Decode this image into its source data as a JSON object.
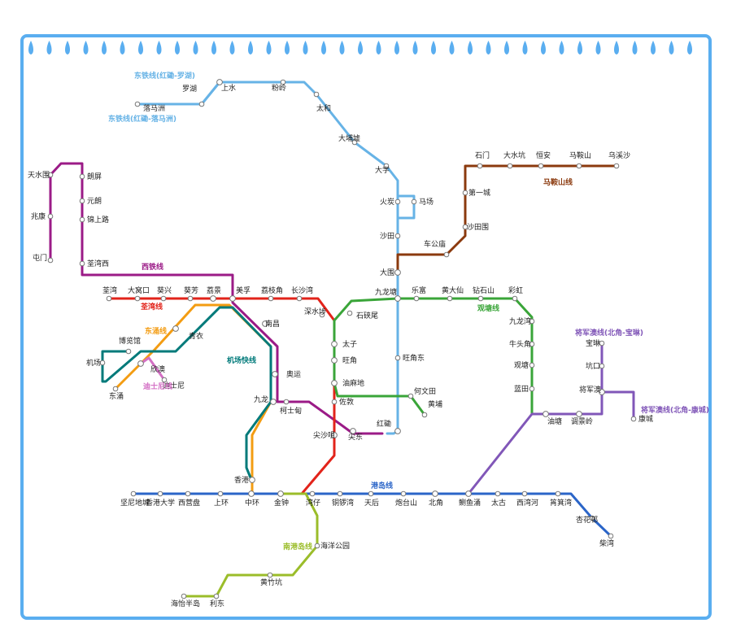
{
  "colors": {
    "frame": "#5aaef0",
    "east_rail": "#67b3e6",
    "west_rail": "#9b1b87",
    "tsuen_wan": "#e2231a",
    "tung_chung": "#f39c12",
    "airport_express": "#007a7a",
    "disneyland": "#d36fc4",
    "kwun_tong": "#3aa539",
    "ma_on_shan": "#8b3a0e",
    "tseung_kwan_o": "#8157b8",
    "island": "#2b65c8",
    "south_island": "#9bbd2a"
  },
  "lines": [
    {
      "id": "east_rail_lowu",
      "name": "东铁线(红磡-罗湖)",
      "color_key": "east_rail",
      "stations": [
        "罗湖",
        "上水",
        "粉岭",
        "太和",
        "大埔墟",
        "大学",
        "火炭",
        "沙田",
        "大围",
        "九龙塘",
        "旺角东",
        "红磡"
      ]
    },
    {
      "id": "east_rail_lmc",
      "name": "东铁线(红磡-落马洲)",
      "color_key": "east_rail",
      "stations": [
        "落马洲",
        "上水"
      ]
    },
    {
      "id": "racecourse",
      "name": "",
      "color_key": "east_rail",
      "stations": [
        "火炭",
        "马场",
        "沙田"
      ]
    },
    {
      "id": "west_rail",
      "name": "西铁线",
      "color_key": "west_rail",
      "stations": [
        "屯门",
        "兆康",
        "天水围",
        "朗屏",
        "元朗",
        "锦上路",
        "荃湾西",
        "美孚",
        "南昌",
        "奥运",
        "柯士甸",
        "尖东",
        "红磡"
      ]
    },
    {
      "id": "tsuen_wan",
      "name": "荃湾线",
      "color_key": "tsuen_wan",
      "stations": [
        "荃湾",
        "大窝口",
        "葵兴",
        "葵芳",
        "荔景",
        "美孚",
        "荔枝角",
        "长沙湾",
        "深水埗",
        "太子",
        "旺角",
        "油麻地",
        "佐敦",
        "尖沙咀",
        "金钟",
        "中环"
      ]
    },
    {
      "id": "tung_chung",
      "name": "东涌线",
      "color_key": "tung_chung",
      "stations": [
        "东涌",
        "欣澳",
        "青衣",
        "荔景",
        "南昌",
        "奥运",
        "九龙",
        "香港"
      ]
    },
    {
      "id": "airport_express",
      "name": "机场快线",
      "color_key": "airport_express",
      "stations": [
        "博览馆",
        "机场",
        "青衣",
        "九龙",
        "香港"
      ]
    },
    {
      "id": "disneyland",
      "name": "迪士尼线",
      "color_key": "disneyland",
      "stations": [
        "欣澳",
        "迪士尼"
      ]
    },
    {
      "id": "kwun_tong",
      "name": "观塘线",
      "color_key": "kwun_tong",
      "stations": [
        "何文田",
        "黄埔",
        "油麻地",
        "旺角",
        "太子",
        "石硖尾",
        "九龙塘",
        "乐富",
        "黄大仙",
        "钻石山",
        "彩虹",
        "九龙湾",
        "牛头角",
        "观塘",
        "蓝田",
        "油塘",
        "调景岭"
      ]
    },
    {
      "id": "ma_on_shan",
      "name": "马鞍山线",
      "color_key": "ma_on_shan",
      "stations": [
        "大围",
        "车公庙",
        "沙田围",
        "第一城",
        "石门",
        "大水坑",
        "恒安",
        "马鞍山",
        "乌溪沙"
      ]
    },
    {
      "id": "tko_po_lam",
      "name": "将军澳线(北角-宝琳)",
      "color_key": "tseung_kwan_o",
      "stations": [
        "北角",
        "鲗鱼涌",
        "油塘",
        "调景岭",
        "将军澳",
        "坑口",
        "宝琳"
      ]
    },
    {
      "id": "tko_lohas",
      "name": "将军澳线(北角-康城)",
      "color_key": "tseung_kwan_o",
      "stations": [
        "将军澳",
        "康城"
      ]
    },
    {
      "id": "island",
      "name": "港岛线",
      "color_key": "island",
      "stations": [
        "坚尼地城",
        "香港大学",
        "西营盘",
        "上环",
        "中环",
        "金钟",
        "湾仔",
        "铜锣湾",
        "天后",
        "炮台山",
        "北角",
        "鲗鱼涌",
        "太古",
        "西湾河",
        "筲箕湾",
        "杏花邨",
        "柴湾"
      ]
    },
    {
      "id": "south_island",
      "name": "南港岛线",
      "color_key": "south_island",
      "stations": [
        "金钟",
        "海洋公园",
        "黄竹坑",
        "利东",
        "海怡半岛"
      ]
    }
  ],
  "stations": [
    "罗湖",
    "上水",
    "粉岭",
    "太和",
    "大埔墟",
    "大学",
    "火炭",
    "马场",
    "沙田",
    "大围",
    "九龙塘",
    "旺角东",
    "红磡",
    "落马洲",
    "屯门",
    "兆康",
    "天水围",
    "朗屏",
    "元朗",
    "锦上路",
    "荃湾西",
    "美孚",
    "南昌",
    "奥运",
    "柯士甸",
    "尖东",
    "荃湾",
    "大窝口",
    "葵兴",
    "葵芳",
    "荔景",
    "荔枝角",
    "长沙湾",
    "深水埗",
    "太子",
    "旺角",
    "油麻地",
    "佐敦",
    "尖沙咀",
    "金钟",
    "中环",
    "东涌",
    "欣澳",
    "青衣",
    "九龙",
    "香港",
    "博览馆",
    "机场",
    "迪士尼",
    "何文田",
    "黄埔",
    "石硖尾",
    "乐富",
    "黄大仙",
    "钻石山",
    "彩虹",
    "九龙湾",
    "牛头角",
    "观塘",
    "蓝田",
    "油塘",
    "调景岭",
    "车公庙",
    "沙田围",
    "第一城",
    "石门",
    "大水坑",
    "恒安",
    "马鞍山",
    "乌溪沙",
    "鲗鱼涌",
    "将军澳",
    "坑口",
    "宝琳",
    "康城",
    "坚尼地城",
    "香港大学",
    "西营盘",
    "上环",
    "湾仔",
    "铜锣湾",
    "天后",
    "炮台山",
    "北角",
    "太古",
    "西湾河",
    "筲箕湾",
    "杏花邨",
    "柴湾",
    "海洋公园",
    "黄竹坑",
    "利东",
    "海怡半岛"
  ]
}
